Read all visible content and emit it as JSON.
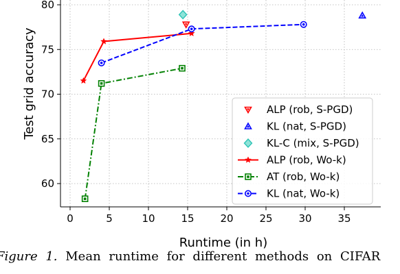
{
  "caption": {
    "figure_label": "Figure 1.",
    "text": "Mean runtime for different methods on CIFAR"
  },
  "chart_data": {
    "type": "line",
    "title": "",
    "xlabel": "Runtime (in h)",
    "ylabel": "Test grid accuracy",
    "xlim": [
      0,
      40
    ],
    "ylim": [
      57,
      80
    ],
    "xticks": [
      0,
      5,
      10,
      15,
      20,
      25,
      30,
      35
    ],
    "yticks": [
      60,
      65,
      70,
      75,
      80
    ],
    "grid": true,
    "legend_position": "lower-right",
    "series": [
      {
        "name": "ALP (rob, S-PGD)",
        "kind": "marker",
        "marker": "triangle-down",
        "color": "#ff0000",
        "points": [
          [
            14.8,
            77.8
          ]
        ]
      },
      {
        "name": "KL (nat, S-PGD)",
        "kind": "marker",
        "marker": "triangle-up",
        "color": "#0000ff",
        "points": [
          [
            37.3,
            78.8
          ]
        ]
      },
      {
        "name": "KL-C (mix, S-PGD)",
        "kind": "marker",
        "marker": "diamond",
        "color": "#2ec4b6",
        "points": [
          [
            14.4,
            78.9
          ]
        ]
      },
      {
        "name": "ALP (rob, Wo-k)",
        "kind": "line",
        "marker": "star",
        "color": "#ff0000",
        "dash": "solid",
        "points": [
          [
            1.7,
            71.5
          ],
          [
            4.3,
            75.9
          ],
          [
            15.5,
            76.8
          ]
        ]
      },
      {
        "name": "AT (rob, Wo-k)",
        "kind": "line",
        "marker": "square",
        "color": "#008000",
        "dash": "dashdot",
        "points": [
          [
            1.9,
            58.3
          ],
          [
            4.0,
            71.2
          ],
          [
            14.3,
            72.9
          ]
        ]
      },
      {
        "name": "KL (nat, Wo-k)",
        "kind": "line",
        "marker": "circle",
        "color": "#0000ff",
        "dash": "dashed",
        "points": [
          [
            4.0,
            73.5
          ],
          [
            15.5,
            77.3
          ],
          [
            29.8,
            77.8
          ]
        ]
      }
    ]
  }
}
